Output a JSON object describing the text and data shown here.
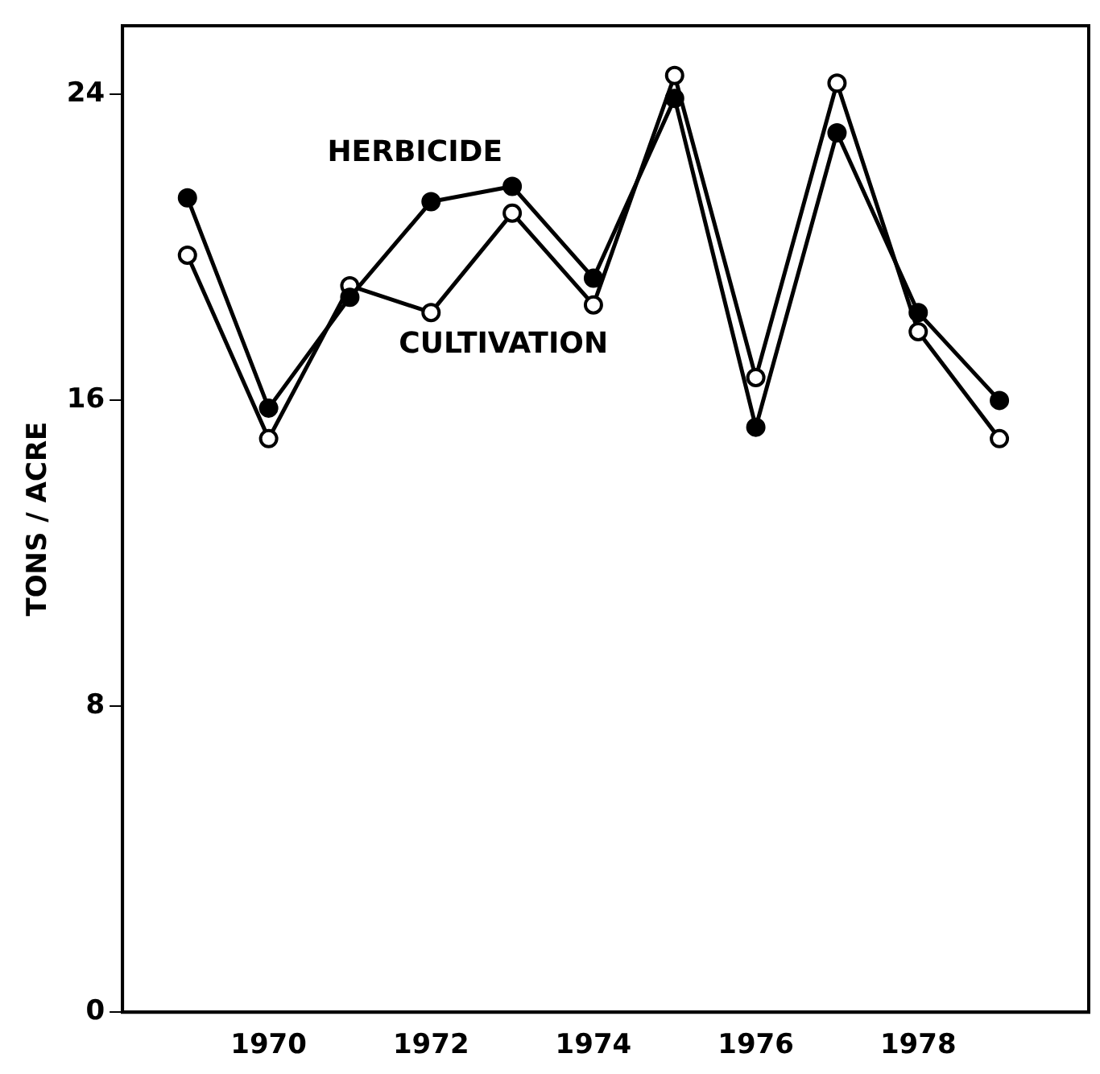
{
  "chart_data": {
    "type": "line",
    "ylabel": "TONS / ACRE",
    "x": [
      1969,
      1970,
      1971,
      1972,
      1973,
      1974,
      1975,
      1976,
      1977,
      1978,
      1979
    ],
    "series": [
      {
        "name": "HERBICIDE",
        "color": "#000000",
        "values": [
          21.3,
          15.8,
          18.7,
          21.2,
          21.6,
          19.2,
          23.9,
          15.3,
          23.0,
          18.3,
          16.0
        ]
      },
      {
        "name": "CULTIVATION",
        "color": "#000000",
        "values": [
          19.8,
          15.0,
          19.0,
          18.3,
          20.9,
          18.5,
          24.5,
          16.6,
          24.3,
          17.8,
          15.0
        ]
      }
    ],
    "xlim": [
      1968.2,
      1980.1
    ],
    "xticks": [
      1970,
      1972,
      1974,
      1976,
      1978
    ],
    "ylim": [
      0,
      25.8
    ],
    "yticks": [
      0,
      8,
      16,
      24
    ],
    "grid": false,
    "legend": false,
    "marker": "circle",
    "line_style": "solid"
  }
}
